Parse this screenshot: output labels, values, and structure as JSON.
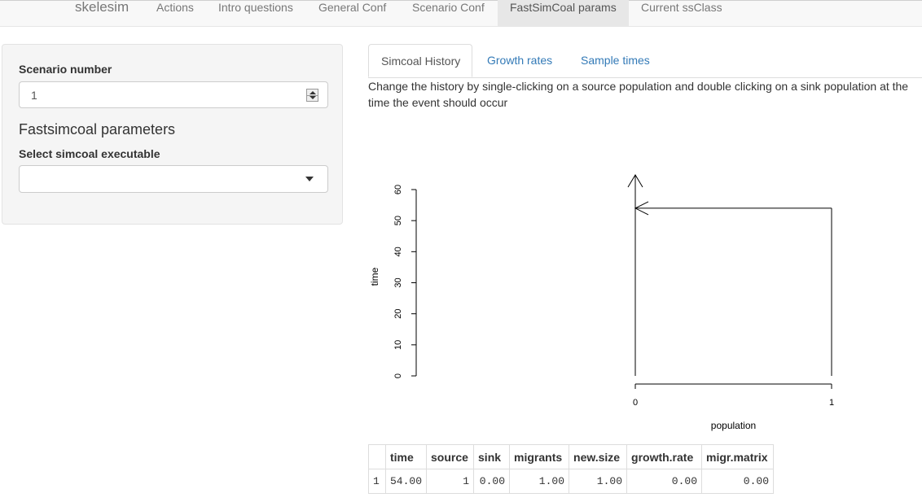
{
  "navbar": {
    "brand": "skelesim",
    "items": [
      {
        "label": "Actions"
      },
      {
        "label": "Intro questions"
      },
      {
        "label": "General Conf"
      },
      {
        "label": "Scenario Conf"
      },
      {
        "label": "FastSimCoal params"
      },
      {
        "label": "Current ssClass"
      }
    ],
    "active": "FastSimCoal params"
  },
  "sidebar": {
    "scenario_label": "Scenario number",
    "scenario_value": "1",
    "section_title": "Fastsimcoal parameters",
    "exec_label": "Select simcoal executable",
    "exec_value": ""
  },
  "tabs": [
    {
      "label": "Simcoal History"
    },
    {
      "label": "Growth rates"
    },
    {
      "label": "Sample times"
    }
  ],
  "active_tab": "Simcoal History",
  "description": "Change the history by single-clicking on a source population and double clicking on a sink population at the time the event should occur",
  "chart_data": {
    "type": "line",
    "xlabel": "population",
    "ylabel": "time",
    "x_ticks": [
      "0",
      "1"
    ],
    "y_ticks": [
      "0",
      "10",
      "20",
      "30",
      "40",
      "50",
      "60"
    ],
    "xlim": [
      0,
      1
    ],
    "ylim": [
      0,
      60
    ],
    "grid": false,
    "events": [
      {
        "time": 54,
        "source": 1,
        "sink": 0
      }
    ]
  },
  "table": {
    "columns": [
      "",
      "time",
      "source",
      "sink",
      "migrants",
      "new.size",
      "growth.rate",
      "migr.matrix"
    ],
    "rows": [
      [
        "1",
        "54.00",
        "1",
        "0.00",
        "1.00",
        "1.00",
        "0.00",
        "0.00"
      ]
    ]
  }
}
